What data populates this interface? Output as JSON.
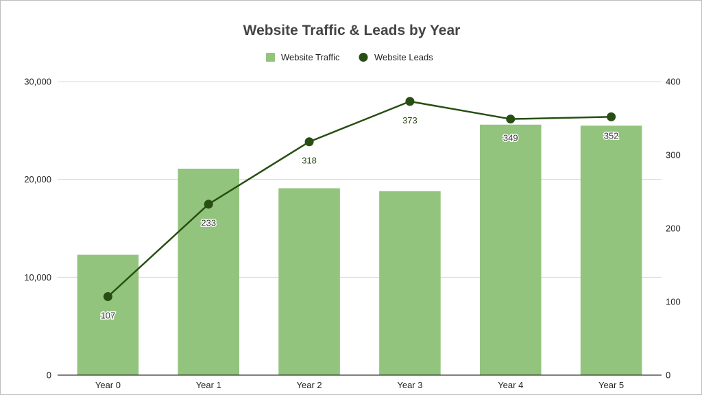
{
  "colors": {
    "bar": "#93c47d",
    "line": "#274e13",
    "gridline": "#d9d9d9",
    "axis": "#333333"
  },
  "chart_data": {
    "type": "bar",
    "title": "Website Traffic & Leads by Year",
    "categories": [
      "Year 0",
      "Year 1",
      "Year 2",
      "Year 3",
      "Year 4",
      "Year 5"
    ],
    "series": [
      {
        "name": "Website Traffic",
        "type": "bar",
        "axis": "left",
        "values": [
          12300,
          21100,
          19100,
          18800,
          25600,
          25500
        ]
      },
      {
        "name": "Website Leads",
        "type": "line",
        "axis": "right",
        "values": [
          107,
          233,
          318,
          373,
          349,
          352
        ],
        "data_labels": [
          "107",
          "233",
          "318",
          "373",
          "349",
          "352"
        ]
      }
    ],
    "y_left": {
      "ylim": [
        0,
        30000
      ],
      "ticks": [
        0,
        10000,
        20000,
        30000
      ],
      "tick_labels": [
        "0",
        "10,000",
        "20,000",
        "30,000"
      ]
    },
    "y_right": {
      "ylim": [
        0,
        400
      ],
      "ticks": [
        0,
        100,
        200,
        300,
        400
      ],
      "tick_labels": [
        "0",
        "100",
        "200",
        "300",
        "400"
      ]
    },
    "xlabel": "",
    "ylabel": "",
    "grid": true,
    "legend_position": "top-center"
  }
}
